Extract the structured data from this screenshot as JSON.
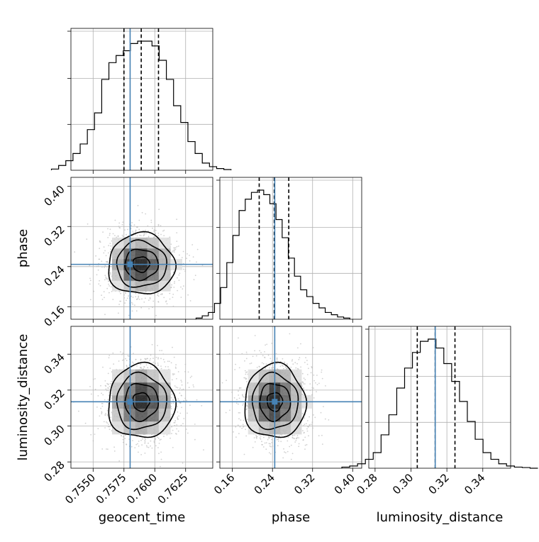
{
  "colors": {
    "truth": "#4682b4",
    "hist": "#000000",
    "grid": "#b0b0b0",
    "points": "#bdbdbd"
  },
  "labels": {
    "x0": "geocent_time",
    "x1": "phase",
    "x2": "luminosity_distance",
    "y1": "phase",
    "y2": "luminosity_distance"
  },
  "chart_data": {
    "type": "corner",
    "parameters": [
      "geocent_time",
      "phase",
      "luminosity_distance"
    ],
    "ranges": {
      "geocent_time": [
        0.7532,
        0.7647
      ],
      "phase": [
        0.135,
        0.418
      ],
      "luminosity_distance": [
        0.2765,
        0.3555
      ]
    },
    "ticks": {
      "geocent_time": [
        "0.7550",
        "0.7575",
        "0.7600",
        "0.7625"
      ],
      "phase": [
        "0.16",
        "0.24",
        "0.32",
        "0.40"
      ],
      "luminosity_distance": [
        "0.28",
        "0.30",
        "0.32",
        "0.34"
      ]
    },
    "truths": {
      "geocent_time": 0.758,
      "phase": 0.2445,
      "luminosity_distance": 0.3135
    },
    "quantiles": {
      "geocent_time": [
        0.7575,
        0.7589,
        0.7603
      ],
      "phase": [
        0.2135,
        0.2435,
        0.2725
      ],
      "luminosity_distance": [
        0.3035,
        0.3135,
        0.3245
      ]
    },
    "histograms": {
      "geocent_time": [
        0.5,
        2,
        4,
        7,
        11,
        17,
        24,
        38,
        45,
        48,
        50,
        53,
        54,
        54,
        52,
        46,
        38,
        27,
        20,
        12,
        7,
        3,
        1.5,
        0.7,
        0.3
      ],
      "phase": [
        0.5,
        1.5,
        3,
        7,
        14,
        25,
        37,
        48,
        53,
        56,
        57,
        55,
        51,
        44,
        36,
        27,
        19,
        13,
        10,
        7,
        5,
        3,
        2,
        1,
        0.5
      ],
      "luminosity_distance": [
        0.5,
        1,
        2,
        4,
        7,
        15,
        24,
        36,
        45,
        52,
        57,
        58,
        54,
        47,
        39,
        30,
        21,
        13,
        7,
        4,
        2,
        1,
        0.5,
        0.3,
        0
      ]
    },
    "density_2d": {
      "phase_vs_geocent_time": {
        "center": [
          0.7589,
          0.2445
        ],
        "sigma": [
          0.00135,
          0.0305
        ]
      },
      "luminosity_distance_vs_geocent_time": {
        "center": [
          0.7589,
          0.3135
        ],
        "sigma": [
          0.00135,
          0.0103
        ]
      },
      "luminosity_distance_vs_phase": {
        "center": [
          0.2445,
          0.3135
        ],
        "sigma": [
          0.0305,
          0.0103
        ]
      }
    },
    "contour_levels": [
      0.5,
      1.0,
      1.5,
      2.0
    ]
  }
}
